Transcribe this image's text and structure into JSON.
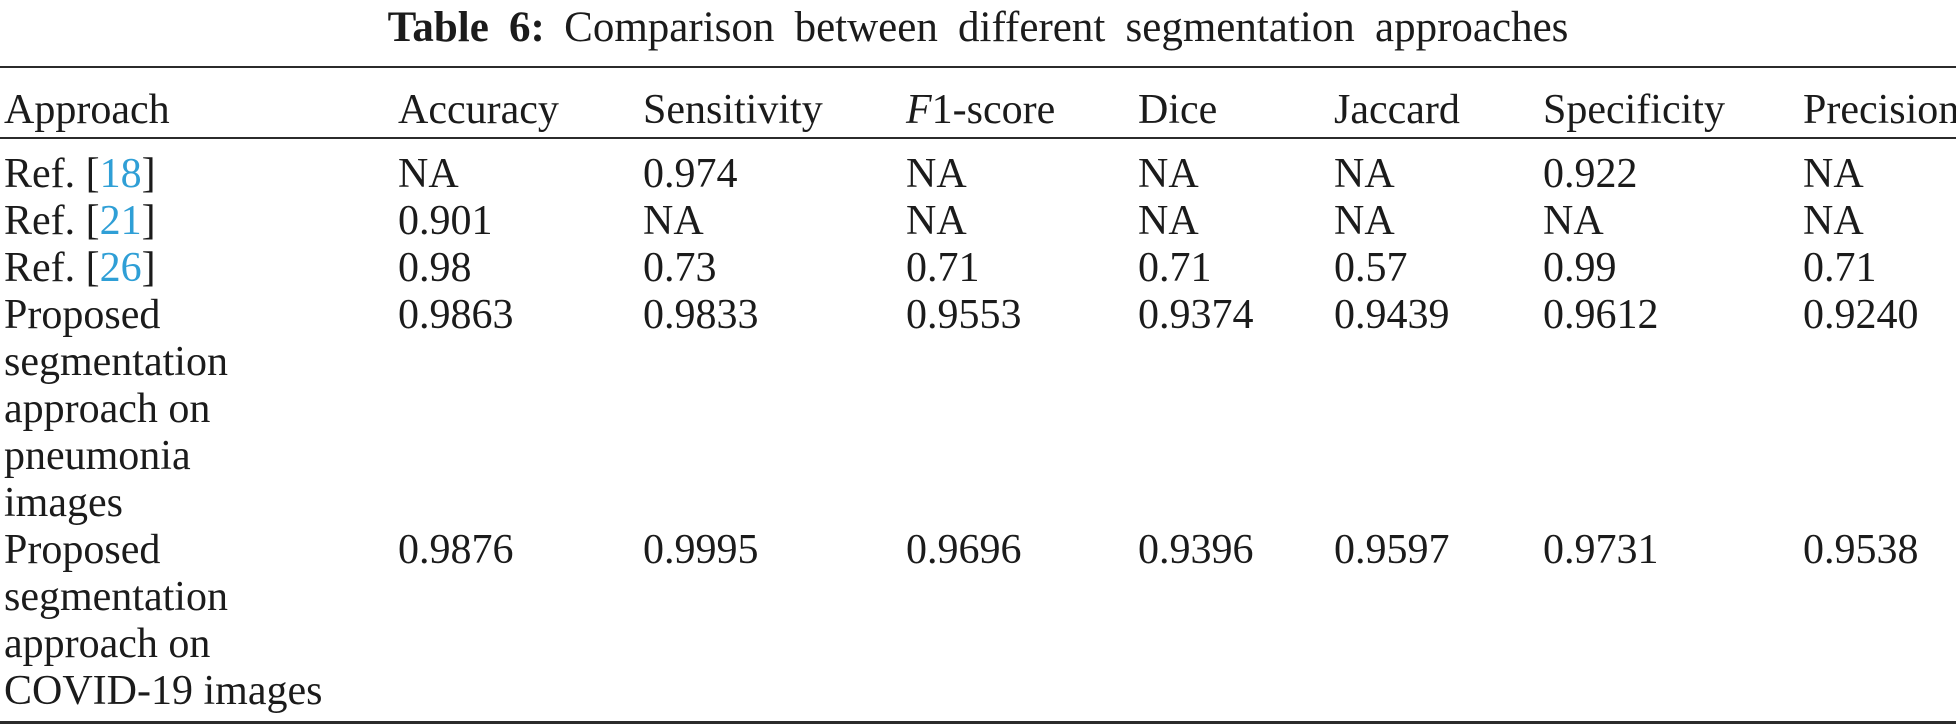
{
  "title": {
    "label": "Table 6:",
    "text": "Comparison between different segmentation approaches"
  },
  "colors": {
    "text": "#1b1b1b",
    "rule": "#2b2b2b",
    "citation": "#2f9fd6",
    "background": "#ffffff"
  },
  "table": {
    "columns": [
      {
        "label": "Approach",
        "italic_first": false
      },
      {
        "label": "Accuracy",
        "italic_first": false
      },
      {
        "label": "Sensitivity",
        "italic_first": false
      },
      {
        "label": "F1-score",
        "italic_first": true
      },
      {
        "label": "Dice",
        "italic_first": false
      },
      {
        "label": "Jaccard",
        "italic_first": false
      },
      {
        "label": "Specificity",
        "italic_first": false
      },
      {
        "label": "Precision",
        "italic_first": false
      }
    ],
    "rows": [
      {
        "approach": {
          "prefix": "Ref. [",
          "cite": "18",
          "suffix": "]"
        },
        "values": [
          "NA",
          "0.974",
          "NA",
          "NA",
          "NA",
          "0.922",
          "NA"
        ]
      },
      {
        "approach": {
          "prefix": "Ref. [",
          "cite": "21",
          "suffix": "]"
        },
        "values": [
          "0.901",
          "NA",
          "NA",
          "NA",
          "NA",
          "NA",
          "NA"
        ]
      },
      {
        "approach": {
          "prefix": "Ref. [",
          "cite": "26",
          "suffix": "]"
        },
        "values": [
          "0.98",
          "0.73",
          "0.71",
          "0.71",
          "0.57",
          "0.99",
          "0.71"
        ]
      },
      {
        "approach": {
          "text": "Proposed segmentation approach on pneumonia images",
          "lines": [
            "Proposed",
            "segmentation",
            "approach on",
            "pneumonia",
            "images"
          ]
        },
        "values": [
          "0.9863",
          "0.9833",
          "0.9553",
          "0.9374",
          "0.9439",
          "0.9612",
          "0.9240"
        ]
      },
      {
        "approach": {
          "text": "Proposed segmentation approach on COVID-19 images",
          "lines": [
            "Proposed",
            "segmentation",
            "approach on",
            "COVID-19 images"
          ]
        },
        "values": [
          "0.9876",
          "0.9995",
          "0.9696",
          "0.9396",
          "0.9597",
          "0.9731",
          "0.9538"
        ]
      }
    ]
  }
}
